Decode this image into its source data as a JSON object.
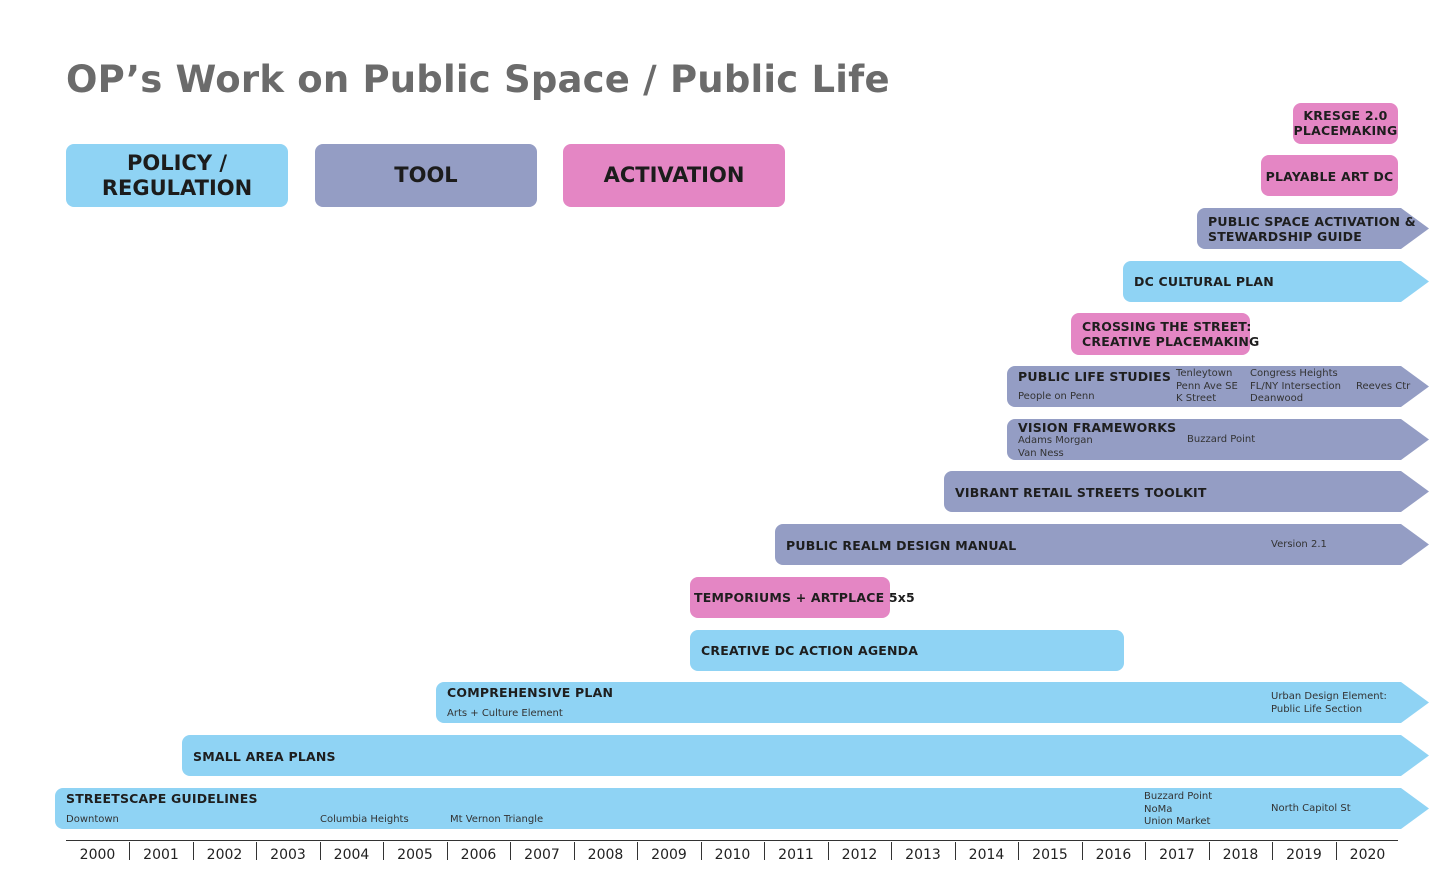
{
  "title": "OP’s Work on Public Space / Public Life",
  "legend": {
    "policy": "POLICY /\nREGULATION",
    "tool": "TOOL",
    "activation": "ACTIVATION"
  },
  "colors": {
    "policy": "#8fd3f4",
    "tool": "#949dc4",
    "activation": "#e486c4"
  },
  "bars": {
    "kresge": {
      "label": "KRESGE 2.0\nPLACEMAKING"
    },
    "playable_art": {
      "label": "PLAYABLE ART DC"
    },
    "public_space_activation": {
      "label": "PUBLIC SPACE ACTIVATION &\nSTEWARDSHIP GUIDE"
    },
    "dc_cultural_plan": {
      "label": "DC CULTURAL PLAN"
    },
    "crossing_the_street": {
      "label": "CROSSING THE STREET:\nCREATIVE PLACEMAKING"
    },
    "public_life_studies": {
      "label": "PUBLIC LIFE STUDIES",
      "notes": [
        "People on Penn",
        "Tenleytown\nPenn Ave SE\nK Street",
        "Congress Heights\nFL/NY Intersection\nDeanwood",
        "Reeves Ctr"
      ]
    },
    "vision_frameworks": {
      "label": "VISION FRAMEWORKS",
      "notes": [
        "Adams Morgan\nVan Ness",
        "Buzzard Point"
      ]
    },
    "vibrant_retail": {
      "label": "VIBRANT RETAIL STREETS TOOLKIT"
    },
    "public_realm": {
      "label": "PUBLIC REALM DESIGN MANUAL",
      "notes": [
        "Version 2.1"
      ]
    },
    "temporiums": {
      "label": "TEMPORIUMS + ARTPLACE 5x5"
    },
    "creative_dc": {
      "label": "CREATIVE DC ACTION AGENDA"
    },
    "comprehensive_plan": {
      "label": "COMPREHENSIVE PLAN",
      "notes": [
        "Arts + Culture Element",
        "Urban Design Element:\nPublic Life Section"
      ]
    },
    "small_area_plans": {
      "label": "SMALL AREA PLANS"
    },
    "streetscape": {
      "label": "STREETSCAPE GUIDELINES",
      "notes": [
        "Downtown",
        "Columbia Heights",
        "Mt Vernon Triangle",
        "Buzzard Point\nNoMa\nUnion Market",
        "North Capitol St"
      ]
    }
  },
  "years": [
    "2000",
    "2001",
    "2002",
    "2003",
    "2004",
    "2005",
    "2006",
    "2007",
    "2008",
    "2009",
    "2010",
    "2011",
    "2012",
    "2013",
    "2014",
    "2015",
    "2016",
    "2017",
    "2018",
    "2019",
    "2020"
  ]
}
